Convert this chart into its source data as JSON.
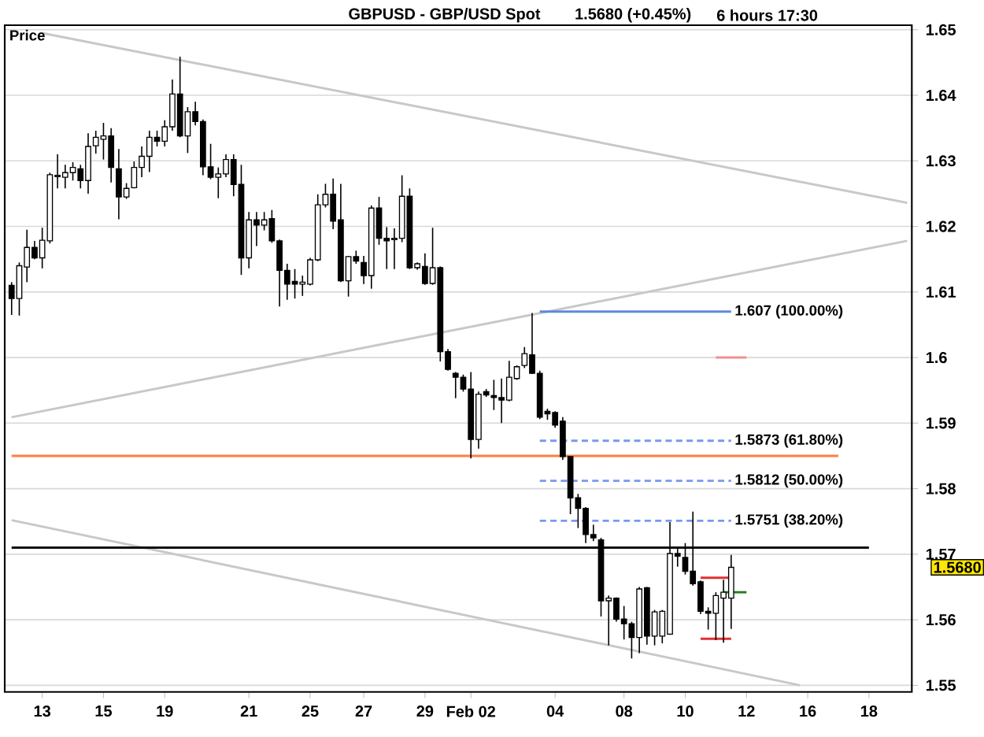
{
  "chart_data": {
    "type": "candlestick",
    "title": "GBPUSD - GBP/USD Spot",
    "subtitle": "1.5680 (+0.45%)",
    "ylabel": "Price",
    "annotations": [
      "6 hours  17:30",
      "1.5680"
    ],
    "categories": [
      null,
      null,
      null,
      null,
      "13",
      null,
      null,
      null,
      null,
      null,
      null,
      null,
      "15",
      null,
      null,
      null,
      null,
      null,
      null,
      null,
      "19",
      null,
      null,
      null,
      null,
      null,
      null,
      null,
      null,
      null,
      null,
      "21",
      null,
      null,
      null,
      null,
      null,
      null,
      null,
      "25",
      null,
      null,
      null,
      null,
      null,
      null,
      "27",
      null,
      null,
      null,
      null,
      null,
      null,
      null,
      "29",
      null,
      null,
      null,
      null,
      null,
      "Feb 02",
      null,
      null,
      null,
      null,
      null,
      null,
      null,
      null,
      null,
      null,
      "04",
      null,
      null,
      null,
      null,
      null,
      null,
      null,
      null,
      "08",
      null,
      null,
      null,
      null,
      null,
      null,
      null,
      "10",
      null,
      null,
      null,
      null,
      null,
      null,
      null,
      "12",
      null,
      null,
      null,
      null,
      null,
      null,
      null,
      "16",
      null,
      null,
      null,
      null,
      null,
      null,
      null,
      "18",
      null,
      null,
      null,
      null,
      null
    ],
    "ohlc": [
      [
        1.611,
        1.6115,
        1.6065,
        1.609
      ],
      [
        1.609,
        1.6145,
        1.6064,
        1.614
      ],
      [
        1.6138,
        1.6195,
        1.6115,
        1.6168
      ],
      [
        1.6168,
        1.6178,
        1.615,
        1.6152
      ],
      [
        1.6152,
        1.6198,
        1.6136,
        1.6179
      ],
      [
        1.6178,
        1.6282,
        1.6174,
        1.6279
      ],
      [
        1.6276,
        1.631,
        1.6258,
        1.6278
      ],
      [
        1.6275,
        1.6294,
        1.6258,
        1.6282
      ],
      [
        1.6282,
        1.6298,
        1.627,
        1.629
      ],
      [
        1.6288,
        1.6294,
        1.6258,
        1.627
      ],
      [
        1.627,
        1.6342,
        1.625,
        1.6322
      ],
      [
        1.6323,
        1.6346,
        1.6311,
        1.6336
      ],
      [
        1.6333,
        1.6358,
        1.6302,
        1.6338
      ],
      [
        1.6338,
        1.635,
        1.6267,
        1.629
      ],
      [
        1.6288,
        1.6318,
        1.6211,
        1.6245
      ],
      [
        1.6245,
        1.6266,
        1.6242,
        1.6258
      ],
      [
        1.6259,
        1.6299,
        1.6258,
        1.629
      ],
      [
        1.629,
        1.6322,
        1.6275,
        1.6307
      ],
      [
        1.6307,
        1.6346,
        1.6283,
        1.6336
      ],
      [
        1.6336,
        1.6346,
        1.6322,
        1.633
      ],
      [
        1.633,
        1.6362,
        1.6322,
        1.6352
      ],
      [
        1.6352,
        1.6424,
        1.6346,
        1.6402
      ],
      [
        1.6402,
        1.6459,
        1.6336,
        1.6338
      ],
      [
        1.6338,
        1.6382,
        1.6312,
        1.6375
      ],
      [
        1.6375,
        1.639,
        1.6354,
        1.636
      ],
      [
        1.636,
        1.6363,
        1.6278,
        1.6291
      ],
      [
        1.6291,
        1.6326,
        1.6272,
        1.6275
      ],
      [
        1.6275,
        1.629,
        1.6243,
        1.628
      ],
      [
        1.628,
        1.631,
        1.6275,
        1.6302
      ],
      [
        1.6302,
        1.631,
        1.6246,
        1.6264
      ],
      [
        1.6264,
        1.6294,
        1.6126,
        1.6152
      ],
      [
        1.6152,
        1.6222,
        1.6136,
        1.621
      ],
      [
        1.621,
        1.6222,
        1.617,
        1.6202
      ],
      [
        1.6202,
        1.6222,
        1.6194,
        1.621
      ],
      [
        1.6212,
        1.6225,
        1.6175,
        1.6178
      ],
      [
        1.6178,
        1.618,
        1.6078,
        1.6133
      ],
      [
        1.6133,
        1.6143,
        1.6088,
        1.6112
      ],
      [
        1.6116,
        1.6135,
        1.609,
        1.6112
      ],
      [
        1.6112,
        1.6125,
        1.6094,
        1.6115
      ],
      [
        1.6112,
        1.6152,
        1.611,
        1.6149
      ],
      [
        1.6149,
        1.6249,
        1.6147,
        1.6233
      ],
      [
        1.6233,
        1.6265,
        1.6229,
        1.6249
      ],
      [
        1.6249,
        1.6273,
        1.6196,
        1.6208
      ],
      [
        1.621,
        1.6265,
        1.6115,
        1.6117
      ],
      [
        1.6117,
        1.6155,
        1.6093,
        1.6154
      ],
      [
        1.6154,
        1.6163,
        1.6143,
        1.6147
      ],
      [
        1.6145,
        1.6155,
        1.6112,
        1.6125
      ],
      [
        1.6125,
        1.6232,
        1.6105,
        1.6228
      ],
      [
        1.6228,
        1.6245,
        1.6172,
        1.6182
      ],
      [
        1.6182,
        1.6199,
        1.6135,
        1.6178
      ],
      [
        1.618,
        1.6197,
        1.6135,
        1.6182
      ],
      [
        1.6182,
        1.6278,
        1.6176,
        1.6246
      ],
      [
        1.6246,
        1.6258,
        1.6135,
        1.6137
      ],
      [
        1.6137,
        1.6145,
        1.6134,
        1.6143
      ],
      [
        1.6139,
        1.6159,
        1.6111,
        1.6113
      ],
      [
        1.6113,
        1.6198,
        1.6111,
        1.6137
      ],
      [
        1.6137,
        1.6139,
        1.5994,
        1.6009
      ],
      [
        1.6009,
        1.6013,
        1.598,
        1.5982
      ],
      [
        1.5976,
        1.5978,
        1.5938,
        1.597
      ],
      [
        1.597,
        1.5974,
        1.5948,
        1.5952
      ],
      [
        1.5952,
        1.5978,
        1.5846,
        1.5875
      ],
      [
        1.5875,
        1.5948,
        1.5861,
        1.5944
      ],
      [
        1.5948,
        1.5952,
        1.594,
        1.5943
      ],
      [
        1.5942,
        1.5966,
        1.592,
        1.5939
      ],
      [
        1.5939,
        1.5968,
        1.59,
        1.5935
      ],
      [
        1.5935,
        1.5995,
        1.5933,
        1.597
      ],
      [
        1.5968,
        1.5988,
        1.5966,
        1.5986
      ],
      [
        1.5988,
        1.6016,
        1.5984,
        1.6006
      ],
      [
        1.6004,
        1.6068,
        1.5975,
        1.5976
      ],
      [
        1.5976,
        1.598,
        1.5906,
        1.5909
      ],
      [
        1.5918,
        1.5922,
        1.5905,
        1.5914
      ],
      [
        1.5916,
        1.5918,
        1.5893,
        1.5897
      ],
      [
        1.5903,
        1.5909,
        1.5844,
        1.5849
      ],
      [
        1.5849,
        1.5849,
        1.5761,
        1.5786
      ],
      [
        1.5786,
        1.5792,
        1.574,
        1.577
      ],
      [
        1.577,
        1.5772,
        1.5717,
        1.573
      ],
      [
        1.573,
        1.5745,
        1.572,
        1.5725
      ],
      [
        1.5722,
        1.5725,
        1.5605,
        1.5629
      ],
      [
        1.5629,
        1.5637,
        1.5561,
        1.5633
      ],
      [
        1.5633,
        1.5634,
        1.5597,
        1.5601
      ],
      [
        1.5601,
        1.5621,
        1.557,
        1.5594
      ],
      [
        1.5594,
        1.5597,
        1.5541,
        1.5573
      ],
      [
        1.5573,
        1.565,
        1.5549,
        1.5647
      ],
      [
        1.5649,
        1.565,
        1.5562,
        1.5575
      ],
      [
        1.5575,
        1.5615,
        1.5561,
        1.5612
      ],
      [
        1.5575,
        1.5615,
        1.5564,
        1.5613
      ],
      [
        1.5578,
        1.5749,
        1.5577,
        1.5701
      ],
      [
        1.5701,
        1.5709,
        1.5681,
        1.5697
      ],
      [
        1.5695,
        1.5717,
        1.5669,
        1.5674
      ],
      [
        1.5674,
        1.5765,
        1.5652,
        1.5655
      ],
      [
        1.5658,
        1.566,
        1.5609,
        1.5613
      ],
      [
        1.5613,
        1.5619,
        1.5585,
        1.561
      ],
      [
        1.561,
        1.5642,
        1.5569,
        1.5637
      ],
      [
        1.5633,
        1.5661,
        1.5565,
        1.5642
      ],
      [
        1.5633,
        1.5699,
        1.5586,
        1.568
      ],
      null,
      null,
      null,
      null,
      null,
      null,
      null,
      null,
      null,
      null,
      null,
      null,
      null,
      null,
      null,
      null,
      null,
      null,
      null,
      null,
      null,
      null,
      null
    ],
    "series": [
      {
        "type": "line",
        "color": "#c8c8c8",
        "values": [
          null,
          null,
          null,
          null,
          1.6495,
          null,
          null,
          null,
          null,
          null,
          null,
          null,
          null,
          null,
          null,
          null,
          null,
          null,
          null,
          null,
          null,
          null,
          null,
          null,
          null,
          null,
          null,
          null,
          null,
          null,
          null,
          null,
          null,
          null,
          null,
          null,
          null,
          null,
          null,
          null,
          null,
          null,
          null,
          null,
          null,
          null,
          null,
          null,
          null,
          null,
          null,
          null,
          null,
          null,
          null,
          null,
          null,
          null,
          null,
          null,
          null,
          null,
          null,
          null,
          null,
          null,
          null,
          null,
          null,
          null,
          null,
          null,
          null,
          null,
          null,
          null,
          null,
          null,
          null,
          null,
          null,
          null,
          null,
          null,
          null,
          null,
          null,
          null,
          null,
          null,
          null,
          null,
          null,
          null,
          null,
          null,
          null,
          null,
          null,
          null,
          null,
          null,
          null,
          null,
          null,
          null,
          null,
          null,
          null,
          null,
          null,
          null,
          null,
          null,
          null,
          null,
          null,
          1.6236
        ]
      },
      {
        "type": "line",
        "color": "#c8c8c8",
        "values": [
          1.5909,
          null,
          null,
          null,
          null,
          null,
          null,
          null,
          null,
          null,
          null,
          null,
          null,
          null,
          null,
          null,
          null,
          null,
          null,
          null,
          null,
          null,
          null,
          null,
          null,
          null,
          null,
          null,
          null,
          null,
          null,
          null,
          null,
          null,
          null,
          null,
          null,
          null,
          null,
          null,
          null,
          null,
          null,
          null,
          null,
          null,
          null,
          null,
          null,
          null,
          null,
          null,
          null,
          null,
          null,
          null,
          null,
          null,
          null,
          null,
          null,
          null,
          null,
          null,
          null,
          null,
          null,
          null,
          null,
          null,
          null,
          null,
          null,
          null,
          null,
          null,
          null,
          null,
          null,
          null,
          null,
          null,
          null,
          null,
          null,
          null,
          null,
          null,
          null,
          null,
          null,
          null,
          null,
          null,
          null,
          null,
          null,
          null,
          null,
          null,
          null,
          null,
          null,
          null,
          null,
          null,
          null,
          null,
          null,
          null,
          null,
          null,
          null,
          null,
          null,
          null,
          null,
          1.6178
        ]
      },
      {
        "type": "line",
        "color": "#c8c8c8",
        "values": [
          1.5752,
          null,
          null,
          null,
          null,
          null,
          null,
          null,
          null,
          null,
          null,
          null,
          null,
          null,
          null,
          null,
          null,
          null,
          null,
          null,
          null,
          null,
          null,
          null,
          null,
          null,
          null,
          null,
          null,
          null,
          null,
          null,
          null,
          null,
          null,
          null,
          null,
          null,
          null,
          null,
          null,
          null,
          null,
          null,
          null,
          null,
          null,
          null,
          null,
          null,
          null,
          null,
          null,
          null,
          null,
          null,
          null,
          null,
          null,
          null,
          null,
          null,
          null,
          null,
          null,
          null,
          null,
          null,
          null,
          null,
          null,
          null,
          null,
          null,
          null,
          null,
          null,
          null,
          null,
          null,
          null,
          null,
          null,
          null,
          null,
          null,
          null,
          null,
          null,
          null,
          null,
          null,
          null,
          null,
          null,
          null,
          null,
          null,
          null,
          null,
          null,
          null,
          null,
          1.55,
          null,
          null,
          null,
          null,
          null,
          null,
          null,
          null,
          null,
          null,
          null,
          null,
          null,
          null
        ]
      },
      {
        "type": "line",
        "color": "#ff7f3f",
        "values": [
          1.585,
          null,
          null,
          null,
          null,
          null,
          null,
          null,
          null,
          null,
          null,
          null,
          null,
          null,
          null,
          null,
          null,
          null,
          null,
          null,
          null,
          null,
          null,
          null,
          null,
          null,
          null,
          null,
          null,
          null,
          null,
          null,
          null,
          null,
          null,
          null,
          null,
          null,
          null,
          null,
          null,
          null,
          null,
          null,
          null,
          null,
          null,
          null,
          null,
          null,
          null,
          null,
          null,
          null,
          null,
          null,
          null,
          null,
          null,
          null,
          null,
          null,
          null,
          null,
          null,
          null,
          null,
          null,
          null,
          null,
          null,
          null,
          null,
          null,
          null,
          null,
          null,
          null,
          null,
          null,
          null,
          null,
          null,
          null,
          null,
          null,
          null,
          null,
          null,
          null,
          null,
          null,
          null,
          null,
          null,
          null,
          null,
          null,
          null,
          null,
          null,
          null,
          null,
          null,
          null,
          null,
          null,
          null,
          1.585,
          null,
          null,
          null,
          null,
          null,
          null,
          null,
          null,
          null
        ]
      },
      {
        "type": "line",
        "color": "#111111",
        "values": [
          1.571,
          null,
          null,
          null,
          null,
          null,
          null,
          null,
          null,
          null,
          null,
          null,
          null,
          null,
          null,
          null,
          null,
          null,
          null,
          null,
          null,
          null,
          null,
          null,
          null,
          null,
          null,
          null,
          null,
          null,
          null,
          null,
          null,
          null,
          null,
          null,
          null,
          null,
          null,
          null,
          null,
          null,
          null,
          null,
          null,
          null,
          null,
          null,
          null,
          null,
          null,
          null,
          null,
          null,
          null,
          null,
          null,
          null,
          null,
          null,
          null,
          null,
          null,
          null,
          null,
          null,
          null,
          null,
          null,
          null,
          null,
          null,
          null,
          null,
          null,
          null,
          null,
          null,
          null,
          null,
          null,
          null,
          null,
          null,
          null,
          null,
          null,
          null,
          null,
          null,
          null,
          null,
          null,
          null,
          null,
          null,
          null,
          null,
          null,
          null,
          null,
          null,
          null,
          null,
          null,
          null,
          null,
          null,
          null,
          null,
          null,
          null,
          1.571,
          null,
          null,
          null,
          null,
          null
        ]
      },
      {
        "type": "line",
        "name": "1.607 (100.00%)",
        "color": "#5b8bd9",
        "values": [
          null,
          null,
          null,
          null,
          null,
          null,
          null,
          null,
          null,
          null,
          null,
          null,
          null,
          null,
          null,
          null,
          null,
          null,
          null,
          null,
          null,
          null,
          null,
          null,
          null,
          null,
          null,
          null,
          null,
          null,
          null,
          null,
          null,
          null,
          null,
          null,
          null,
          null,
          null,
          null,
          null,
          null,
          null,
          null,
          null,
          null,
          null,
          null,
          null,
          null,
          null,
          null,
          null,
          null,
          null,
          null,
          null,
          null,
          null,
          null,
          null,
          null,
          null,
          null,
          null,
          null,
          null,
          null,
          null,
          1.607,
          null,
          null,
          null,
          null,
          null,
          null,
          null,
          null,
          null,
          null,
          null,
          null,
          null,
          null,
          null,
          null,
          null,
          null,
          null,
          null,
          null,
          null,
          null,
          null,
          1.607,
          null,
          null,
          null,
          null,
          null,
          null,
          null,
          null,
          null,
          null,
          null,
          null,
          null,
          null,
          null,
          null,
          null,
          null,
          null,
          null,
          null,
          null,
          null
        ]
      },
      {
        "type": "line",
        "name": "1.5873 (61.80%)",
        "color": "#7799ee",
        "line_style": "dashed",
        "values": [
          null,
          null,
          null,
          null,
          null,
          null,
          null,
          null,
          null,
          null,
          null,
          null,
          null,
          null,
          null,
          null,
          null,
          null,
          null,
          null,
          null,
          null,
          null,
          null,
          null,
          null,
          null,
          null,
          null,
          null,
          null,
          null,
          null,
          null,
          null,
          null,
          null,
          null,
          null,
          null,
          null,
          null,
          null,
          null,
          null,
          null,
          null,
          null,
          null,
          null,
          null,
          null,
          null,
          null,
          null,
          null,
          null,
          null,
          null,
          null,
          null,
          null,
          null,
          null,
          null,
          null,
          null,
          null,
          null,
          1.5873,
          null,
          null,
          null,
          null,
          null,
          null,
          null,
          null,
          null,
          null,
          null,
          null,
          null,
          null,
          null,
          null,
          null,
          null,
          null,
          null,
          null,
          null,
          null,
          null,
          1.5873,
          null,
          null,
          null,
          null,
          null,
          null,
          null,
          null,
          null,
          null,
          null,
          null,
          null,
          null,
          null,
          null,
          null,
          null,
          null,
          null,
          null,
          null,
          null
        ]
      },
      {
        "type": "line",
        "name": "1.5812 (50.00%)",
        "color": "#7799ee",
        "line_style": "dashed",
        "values": [
          null,
          null,
          null,
          null,
          null,
          null,
          null,
          null,
          null,
          null,
          null,
          null,
          null,
          null,
          null,
          null,
          null,
          null,
          null,
          null,
          null,
          null,
          null,
          null,
          null,
          null,
          null,
          null,
          null,
          null,
          null,
          null,
          null,
          null,
          null,
          null,
          null,
          null,
          null,
          null,
          null,
          null,
          null,
          null,
          null,
          null,
          null,
          null,
          null,
          null,
          null,
          null,
          null,
          null,
          null,
          null,
          null,
          null,
          null,
          null,
          null,
          null,
          null,
          null,
          null,
          null,
          null,
          null,
          null,
          1.5812,
          null,
          null,
          null,
          null,
          null,
          null,
          null,
          null,
          null,
          null,
          null,
          null,
          null,
          null,
          null,
          null,
          null,
          null,
          null,
          null,
          null,
          null,
          null,
          null,
          1.5812,
          null,
          null,
          null,
          null,
          null,
          null,
          null,
          null,
          null,
          null,
          null,
          null,
          null,
          null,
          null,
          null,
          null,
          null,
          null,
          null,
          null,
          null,
          null
        ]
      },
      {
        "type": "line",
        "name": "1.5751 (38.20%)",
        "color": "#7799ee",
        "line_style": "dashed",
        "values": [
          null,
          null,
          null,
          null,
          null,
          null,
          null,
          null,
          null,
          null,
          null,
          null,
          null,
          null,
          null,
          null,
          null,
          null,
          null,
          null,
          null,
          null,
          null,
          null,
          null,
          null,
          null,
          null,
          null,
          null,
          null,
          null,
          null,
          null,
          null,
          null,
          null,
          null,
          null,
          null,
          null,
          null,
          null,
          null,
          null,
          null,
          null,
          null,
          null,
          null,
          null,
          null,
          null,
          null,
          null,
          null,
          null,
          null,
          null,
          null,
          null,
          null,
          null,
          null,
          null,
          null,
          null,
          null,
          null,
          1.5751,
          null,
          null,
          null,
          null,
          null,
          null,
          null,
          null,
          null,
          null,
          null,
          null,
          null,
          null,
          null,
          null,
          null,
          null,
          null,
          null,
          null,
          null,
          null,
          null,
          1.5751,
          null,
          null,
          null,
          null,
          null,
          null,
          null,
          null,
          null,
          null,
          null,
          null,
          null,
          null,
          null,
          null,
          null,
          null,
          null,
          null,
          null,
          null,
          null
        ]
      },
      {
        "type": "line",
        "color": "#f09090",
        "values": [
          null,
          null,
          null,
          null,
          null,
          null,
          null,
          null,
          null,
          null,
          null,
          null,
          null,
          null,
          null,
          null,
          null,
          null,
          null,
          null,
          null,
          null,
          null,
          null,
          null,
          null,
          null,
          null,
          null,
          null,
          null,
          null,
          null,
          null,
          null,
          null,
          null,
          null,
          null,
          null,
          null,
          null,
          null,
          null,
          null,
          null,
          null,
          null,
          null,
          null,
          null,
          null,
          null,
          null,
          null,
          null,
          null,
          null,
          null,
          null,
          null,
          null,
          null,
          null,
          null,
          null,
          null,
          null,
          null,
          null,
          null,
          null,
          null,
          null,
          null,
          null,
          null,
          null,
          null,
          null,
          null,
          null,
          null,
          null,
          null,
          null,
          null,
          null,
          null,
          null,
          null,
          null,
          1.6,
          null,
          null,
          null,
          1.6,
          null,
          null,
          null,
          null,
          null,
          null,
          null,
          null,
          null,
          null,
          null,
          null,
          null,
          null,
          null,
          null,
          null,
          null,
          null,
          null,
          null
        ]
      },
      {
        "type": "line",
        "color": "#e03030",
        "values": [
          null,
          null,
          null,
          null,
          null,
          null,
          null,
          null,
          null,
          null,
          null,
          null,
          null,
          null,
          null,
          null,
          null,
          null,
          null,
          null,
          null,
          null,
          null,
          null,
          null,
          null,
          null,
          null,
          null,
          null,
          null,
          null,
          null,
          null,
          null,
          null,
          null,
          null,
          null,
          null,
          null,
          null,
          null,
          null,
          null,
          null,
          null,
          null,
          null,
          null,
          null,
          null,
          null,
          null,
          null,
          null,
          null,
          null,
          null,
          null,
          null,
          null,
          null,
          null,
          null,
          null,
          null,
          null,
          null,
          null,
          null,
          null,
          null,
          null,
          null,
          null,
          null,
          null,
          null,
          null,
          null,
          null,
          null,
          null,
          null,
          null,
          null,
          null,
          null,
          null,
          1.5664,
          null,
          null,
          null,
          1.5664,
          null,
          null,
          null,
          null,
          null,
          null,
          null,
          null,
          null,
          null,
          null,
          null,
          null,
          null,
          null,
          null,
          null,
          null,
          null,
          null,
          null,
          null,
          null
        ]
      },
      {
        "type": "line",
        "color": "#e03030",
        "values": [
          null,
          null,
          null,
          null,
          null,
          null,
          null,
          null,
          null,
          null,
          null,
          null,
          null,
          null,
          null,
          null,
          null,
          null,
          null,
          null,
          null,
          null,
          null,
          null,
          null,
          null,
          null,
          null,
          null,
          null,
          null,
          null,
          null,
          null,
          null,
          null,
          null,
          null,
          null,
          null,
          null,
          null,
          null,
          null,
          null,
          null,
          null,
          null,
          null,
          null,
          null,
          null,
          null,
          null,
          null,
          null,
          null,
          null,
          null,
          null,
          null,
          null,
          null,
          null,
          null,
          null,
          null,
          null,
          null,
          null,
          null,
          null,
          null,
          null,
          null,
          null,
          null,
          null,
          null,
          null,
          null,
          null,
          null,
          null,
          null,
          null,
          null,
          null,
          null,
          null,
          1.5571,
          null,
          null,
          null,
          1.5571,
          null,
          null,
          null,
          null,
          null,
          null,
          null,
          null,
          null,
          null,
          null,
          null,
          null,
          null,
          null,
          null,
          null,
          null,
          null,
          null,
          null,
          null,
          null
        ]
      },
      {
        "type": "line",
        "color": "#208020",
        "values": [
          null,
          null,
          null,
          null,
          null,
          null,
          null,
          null,
          null,
          null,
          null,
          null,
          null,
          null,
          null,
          null,
          null,
          null,
          null,
          null,
          null,
          null,
          null,
          null,
          null,
          null,
          null,
          null,
          null,
          null,
          null,
          null,
          null,
          null,
          null,
          null,
          null,
          null,
          null,
          null,
          null,
          null,
          null,
          null,
          null,
          null,
          null,
          null,
          null,
          null,
          null,
          null,
          null,
          null,
          null,
          null,
          null,
          null,
          null,
          null,
          null,
          null,
          null,
          null,
          null,
          null,
          null,
          null,
          null,
          null,
          null,
          null,
          null,
          null,
          null,
          null,
          null,
          null,
          null,
          null,
          null,
          null,
          null,
          null,
          null,
          null,
          null,
          null,
          null,
          null,
          null,
          null,
          null,
          1.5642,
          null,
          null,
          1.5642,
          null,
          null,
          null,
          null,
          null,
          null,
          null,
          null,
          null,
          null,
          null,
          null,
          null,
          null,
          null,
          null,
          null,
          null,
          null,
          null,
          null
        ]
      }
    ],
    "ylim": [
      1.549,
      1.6507
    ],
    "yticks": [
      1.55,
      1.56,
      1.57,
      1.58,
      1.59,
      1.6,
      1.61,
      1.62,
      1.63,
      1.64,
      1.65
    ],
    "grid": "y"
  }
}
